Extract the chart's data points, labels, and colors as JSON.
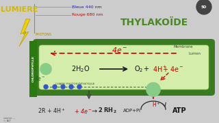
{
  "bg_color": "#cccccc",
  "thylakoid_outer": "#3a7a20",
  "thylakoid_inner": "#d4edaa",
  "thylakoid_lumen": "#e8f5d0",
  "membrane_label": "Membrane",
  "lumen_label": "Lumen",
  "thylakoid_label": "THYLAKOÏDE",
  "thylakoid_color": "#4a8a25",
  "lumiere_label": "LUMIERE",
  "lumiere_color": "#d4b800",
  "blue_label": "Bleue 440 nm",
  "blue_color": "#1a1acc",
  "red_label": "Rouge 680 nm",
  "red_color": "#cc0000",
  "photons_label": "PHOTONS",
  "photons_color": "#aa8800",
  "chloro_label": "CHLOROPHYLLE",
  "chloro_bg": "#2a7a10",
  "chain_label": "CHAINE PHOTOSYNTHETIQUE",
  "chain_color": "#445522",
  "four_e_color": "#cc0000",
  "circle_color": "#88cc88",
  "circle_edge": "#3a8a3a",
  "blue_dot_color": "#3355cc",
  "adp_label": "ADP+Pi",
  "atp_label": "ATP",
  "arrow_red": "#cc0000",
  "arrow_black": "#111111"
}
